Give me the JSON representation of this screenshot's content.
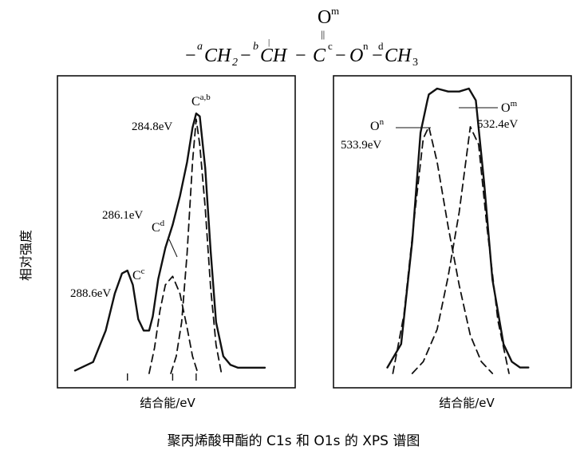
{
  "formula": {
    "top_label": "O",
    "top_sup": "m",
    "dbl_bond": "||",
    "dash1": "−",
    "a_sup": "a",
    "ch2_main": "CH",
    "ch2_sub": "2",
    "dash2": "−",
    "b_sup": "b",
    "ch_main": "CH",
    "tick": "|",
    "dash3": "−",
    "c_main": "C",
    "c_sup": "c",
    "dash4": "−",
    "on_main": "O",
    "on_sup": "n",
    "dash5": "−",
    "d_sup": "d",
    "ch3_main": "CH",
    "ch3_sub": "3"
  },
  "y_axis_label": "相对强度",
  "caption": "聚丙烯酸甲酯的 C1s 和 O1s 的 XPS 谱图",
  "chart_data": [
    {
      "type": "line",
      "panel": "C1s",
      "xlabel": "结合能/eV",
      "ylabel": "相对强度",
      "x_reversed": true,
      "xlim": [
        291.5,
        281.0
      ],
      "ylim": [
        0,
        1
      ],
      "grid": false,
      "series": [
        {
          "style": "solid",
          "x": [
            291.5,
            290.5,
            289.8,
            289.3,
            288.9,
            288.6,
            288.3,
            288.0,
            287.7,
            287.4,
            287.2,
            286.9,
            286.5,
            286.1,
            285.7,
            285.3,
            285.0,
            284.8,
            284.6,
            284.3,
            284.0,
            283.7,
            283.3,
            282.9,
            282.5,
            281.8,
            281.0
          ],
          "y": [
            0.01,
            0.04,
            0.15,
            0.28,
            0.35,
            0.36,
            0.31,
            0.19,
            0.15,
            0.15,
            0.2,
            0.33,
            0.44,
            0.52,
            0.62,
            0.74,
            0.86,
            0.91,
            0.9,
            0.72,
            0.43,
            0.18,
            0.06,
            0.03,
            0.02,
            0.02,
            0.02
          ]
        },
        {
          "style": "dashed",
          "x": [
            287.4,
            287.1,
            286.8,
            286.5,
            286.1,
            285.7,
            285.3,
            285.0,
            284.7
          ],
          "y": [
            0.0,
            0.09,
            0.22,
            0.31,
            0.34,
            0.28,
            0.16,
            0.06,
            0.0
          ]
        },
        {
          "style": "dashed",
          "x": [
            286.2,
            285.9,
            285.6,
            285.3,
            285.0,
            284.8,
            284.6,
            284.3,
            284.0,
            283.7,
            283.4
          ],
          "y": [
            0.0,
            0.06,
            0.18,
            0.42,
            0.74,
            0.89,
            0.8,
            0.58,
            0.3,
            0.1,
            0.0
          ]
        }
      ],
      "annotations": [
        {
          "label": "C",
          "sup": "a,b",
          "text": "284.8eV",
          "x": 284.8
        },
        {
          "label": "C",
          "sup": "d",
          "text": "286.1eV",
          "x": 286.1
        },
        {
          "label": "C",
          "sup": "c",
          "text": "288.6eV",
          "x": 288.6
        }
      ],
      "ticks": [
        288.6,
        286.1,
        284.8
      ]
    },
    {
      "type": "line",
      "panel": "O1s",
      "xlabel": "结合能/eV",
      "x_reversed": true,
      "xlim": [
        537.0,
        529.5
      ],
      "ylim": [
        0,
        1
      ],
      "grid": false,
      "series": [
        {
          "style": "solid",
          "x": [
            535.4,
            534.9,
            534.5,
            534.2,
            533.95,
            533.9,
            533.6,
            533.2,
            532.8,
            532.45,
            532.2,
            531.9,
            531.6,
            531.2,
            530.9,
            530.6,
            530.3
          ],
          "y": [
            0.02,
            0.1,
            0.45,
            0.82,
            0.93,
            0.95,
            0.97,
            0.96,
            0.96,
            0.97,
            0.93,
            0.65,
            0.32,
            0.1,
            0.04,
            0.02,
            0.02
          ]
        },
        {
          "style": "dashed",
          "x": [
            535.2,
            534.8,
            534.4,
            534.1,
            533.9,
            533.6,
            533.2,
            532.8,
            532.4,
            532.0,
            531.6
          ],
          "y": [
            0.0,
            0.2,
            0.55,
            0.8,
            0.84,
            0.72,
            0.5,
            0.3,
            0.13,
            0.04,
            0.0
          ]
        },
        {
          "style": "dashed",
          "x": [
            534.5,
            534.1,
            533.6,
            533.2,
            532.8,
            532.4,
            532.1,
            531.8,
            531.4,
            531.0
          ],
          "y": [
            0.0,
            0.04,
            0.15,
            0.33,
            0.55,
            0.84,
            0.78,
            0.5,
            0.18,
            0.0
          ]
        }
      ],
      "annotations": [
        {
          "label": "O",
          "sup": "n",
          "text": "533.9eV",
          "x": 533.9
        },
        {
          "label": "O",
          "sup": "m",
          "text": "532.4eV",
          "x": 532.4
        }
      ]
    }
  ]
}
